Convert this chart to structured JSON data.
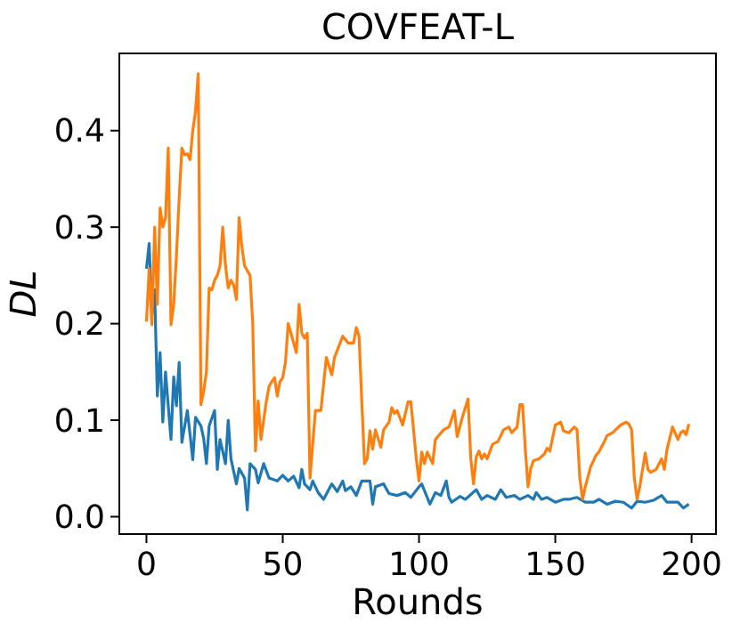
{
  "chart_data": {
    "type": "line",
    "title": "COVFEAT-L",
    "xlabel": "Rounds",
    "ylabel": "DL",
    "xlim": [
      -9.95,
      208.95
    ],
    "ylim": [
      -0.018,
      0.48
    ],
    "xticks": [
      0,
      50,
      100,
      150,
      200
    ],
    "yticks": [
      {
        "value": 0,
        "label": "0.0"
      },
      {
        "value": 0.1,
        "label": "0.1"
      },
      {
        "value": 0.2,
        "label": "0.2"
      },
      {
        "value": 0.3,
        "label": "0.3"
      },
      {
        "value": 0.4,
        "label": "0.4"
      }
    ],
    "grid": false,
    "series": [
      {
        "color": "#1f77b4",
        "x": [
          0,
          1,
          2,
          3,
          4,
          5,
          6,
          7,
          9,
          10,
          11,
          12,
          13,
          15,
          16,
          17,
          18,
          20,
          21,
          22,
          23,
          25,
          26,
          27,
          29,
          30,
          31,
          33,
          34,
          36,
          37,
          38,
          40,
          41,
          43,
          45,
          48,
          50,
          52,
          54,
          56,
          57,
          58,
          60,
          61,
          63,
          65,
          68,
          70,
          72,
          73,
          75,
          77,
          79,
          82,
          83,
          84,
          87,
          89,
          92,
          95,
          97,
          100,
          101,
          104,
          106,
          108,
          110,
          111,
          112,
          115,
          117,
          121,
          123,
          125,
          128,
          130,
          132,
          135,
          137,
          140,
          142,
          143,
          145,
          147,
          150,
          153,
          155,
          158,
          161,
          164,
          166,
          169,
          172,
          175,
          178,
          180,
          183,
          186,
          189,
          191,
          195,
          197,
          199
        ],
        "values": [
          0.257,
          0.283,
          0.21,
          0.235,
          0.125,
          0.17,
          0.098,
          0.15,
          0.08,
          0.145,
          0.115,
          0.16,
          0.077,
          0.11,
          0.085,
          0.059,
          0.103,
          0.094,
          0.081,
          0.055,
          0.094,
          0.11,
          0.049,
          0.08,
          0.055,
          0.1,
          0.06,
          0.034,
          0.05,
          0.04,
          0.007,
          0.055,
          0.049,
          0.035,
          0.055,
          0.04,
          0.037,
          0.043,
          0.037,
          0.042,
          0.03,
          0.049,
          0.034,
          0.028,
          0.037,
          0.025,
          0.018,
          0.034,
          0.026,
          0.037,
          0.027,
          0.031,
          0.022,
          0.037,
          0.037,
          0.013,
          0.031,
          0.034,
          0.024,
          0.022,
          0.025,
          0.02,
          0.031,
          0.034,
          0.013,
          0.025,
          0.022,
          0.037,
          0.02,
          0.015,
          0.021,
          0.018,
          0.028,
          0.018,
          0.022,
          0.018,
          0.028,
          0.02,
          0.022,
          0.018,
          0.022,
          0.018,
          0.025,
          0.018,
          0.02,
          0.015,
          0.018,
          0.018,
          0.02,
          0.015,
          0.015,
          0.018,
          0.013,
          0.016,
          0.015,
          0.009,
          0.016,
          0.015,
          0.017,
          0.022,
          0.015,
          0.015,
          0.009,
          0.013
        ]
      },
      {
        "color": "#ff7f0e",
        "x": [
          0,
          1,
          2,
          3,
          4,
          5,
          6,
          7,
          8,
          9,
          10,
          11,
          12,
          13,
          14,
          15,
          16,
          17,
          18,
          19,
          20,
          21,
          22,
          23,
          24,
          25,
          26,
          27,
          28,
          29,
          30,
          31,
          32,
          33,
          34,
          35,
          36,
          37,
          38,
          39,
          40,
          41,
          42,
          43,
          44,
          45,
          46,
          47,
          48,
          49,
          50,
          51,
          52,
          53,
          54,
          55,
          56,
          57,
          58,
          59,
          60,
          62,
          64,
          66,
          68,
          69,
          72,
          74,
          76,
          77,
          78,
          79,
          80,
          81,
          82,
          83,
          84,
          86,
          87,
          89,
          90,
          91,
          92,
          94,
          96,
          97,
          98,
          99,
          100,
          101,
          102,
          103,
          105,
          106,
          109,
          111,
          113,
          114,
          116,
          118,
          119,
          120,
          121,
          122,
          123,
          124,
          125,
          127,
          129,
          131,
          133,
          134,
          136,
          137,
          138,
          139,
          140,
          141,
          142,
          144,
          146,
          147,
          148,
          150,
          152,
          153,
          155,
          157,
          158,
          159,
          160,
          161,
          163,
          165,
          166,
          168,
          169,
          171,
          174,
          176,
          177,
          178,
          179,
          180,
          181,
          183,
          184,
          185,
          187,
          189,
          190,
          191,
          193,
          195,
          196,
          197,
          198,
          199
        ],
        "values": [
          0.202,
          0.257,
          0.199,
          0.3,
          0.22,
          0.32,
          0.3,
          0.31,
          0.382,
          0.199,
          0.22,
          0.27,
          0.33,
          0.382,
          0.375,
          0.376,
          0.37,
          0.4,
          0.42,
          0.459,
          0.116,
          0.13,
          0.15,
          0.237,
          0.235,
          0.245,
          0.25,
          0.26,
          0.3,
          0.26,
          0.237,
          0.245,
          0.24,
          0.225,
          0.31,
          0.28,
          0.26,
          0.255,
          0.25,
          0.2,
          0.068,
          0.12,
          0.08,
          0.1,
          0.12,
          0.135,
          0.14,
          0.144,
          0.125,
          0.14,
          0.144,
          0.16,
          0.2,
          0.19,
          0.18,
          0.17,
          0.22,
          0.19,
          0.185,
          0.19,
          0.04,
          0.11,
          0.11,
          0.165,
          0.147,
          0.165,
          0.187,
          0.18,
          0.18,
          0.196,
          0.187,
          0.12,
          0.055,
          0.06,
          0.089,
          0.07,
          0.09,
          0.072,
          0.09,
          0.098,
          0.113,
          0.107,
          0.11,
          0.095,
          0.119,
          0.119,
          0.09,
          0.06,
          0.037,
          0.067,
          0.055,
          0.067,
          0.055,
          0.08,
          0.09,
          0.093,
          0.11,
          0.083,
          0.104,
          0.122,
          0.06,
          0.034,
          0.062,
          0.068,
          0.06,
          0.065,
          0.06,
          0.075,
          0.078,
          0.09,
          0.093,
          0.087,
          0.093,
          0.116,
          0.116,
          0.07,
          0.031,
          0.05,
          0.058,
          0.06,
          0.065,
          0.071,
          0.068,
          0.095,
          0.098,
          0.089,
          0.087,
          0.093,
          0.09,
          0.04,
          0.018,
          0.031,
          0.052,
          0.064,
          0.067,
          0.078,
          0.084,
          0.087,
          0.095,
          0.098,
          0.096,
          0.09,
          0.04,
          0.018,
          0.031,
          0.066,
          0.049,
          0.046,
          0.049,
          0.06,
          0.049,
          0.07,
          0.093,
          0.08,
          0.087,
          0.089,
          0.085,
          0.096
        ]
      }
    ]
  }
}
